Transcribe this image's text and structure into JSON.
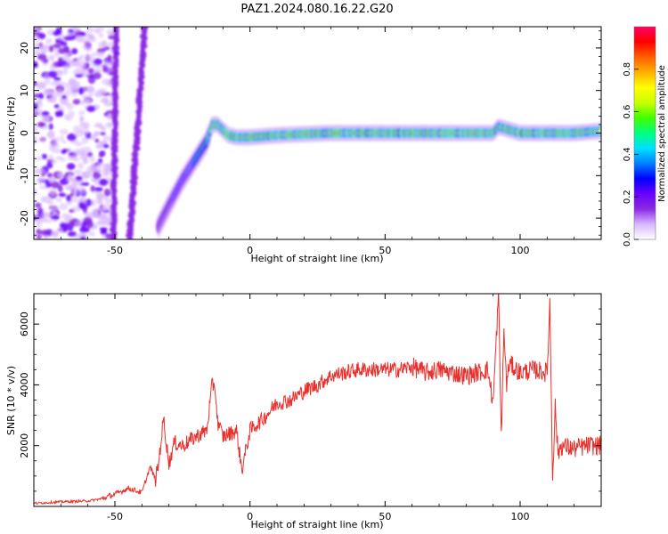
{
  "figure_title": "PAZ1.2024.080.16.22.G20",
  "chart_data": [
    {
      "type": "heatmap",
      "panel": "top",
      "xlabel": "Height of straight line (km)",
      "ylabel": "Frequency (Hz)",
      "xlim": [
        -80,
        130
      ],
      "ylim": [
        -25,
        25
      ],
      "xticks": [
        -50,
        0,
        50,
        100
      ],
      "yticks": [
        -20,
        -10,
        0,
        10,
        20
      ],
      "colorbar": {
        "label": "Normalized spectral amplitude",
        "range": [
          0,
          1
        ],
        "ticks": [
          "0.0",
          "0.2",
          "0.4",
          "0.6",
          "0.8"
        ],
        "colormap": [
          "#ffffff",
          "#d9b8ff",
          "#8a2be2",
          "#6a00ff",
          "#0000ff",
          "#0080ff",
          "#00e0ff",
          "#00ff80",
          "#40ff00",
          "#c8ff00",
          "#ffff00",
          "#ffb000",
          "#ff6000",
          "#ff0000",
          "#ff0066"
        ]
      },
      "features": {
        "noise_region_x": [
          -80,
          -50
        ],
        "steep_line_x": [
          [
            -45,
            -25
          ],
          [
            -39,
            25
          ]
        ],
        "main_curve_x": [
          -34,
          -30,
          -25,
          -20,
          -16,
          -14,
          -12,
          -8,
          -5,
          0,
          10,
          30,
          60,
          90,
          92,
          100,
          110,
          120,
          130
        ],
        "main_curve_y": [
          -22,
          -17,
          -11,
          -6,
          -2,
          2,
          2,
          -0.5,
          -1,
          -1,
          -0.5,
          0,
          0,
          0,
          1.5,
          0,
          0,
          0,
          0.5
        ]
      }
    },
    {
      "type": "line",
      "panel": "bottom",
      "xlabel": "Height of straight line (km)",
      "ylabel": "SNR (10 * v/v)",
      "xlim": [
        -80,
        130
      ],
      "ylim": [
        0,
        7000
      ],
      "xticks": [
        -50,
        0,
        50,
        100
      ],
      "yticks": [
        2000,
        4000,
        6000
      ],
      "series": [
        {
          "color": "#e8302c",
          "x": [
            -80,
            -70,
            -60,
            -55,
            -50,
            -45,
            -40,
            -37,
            -35,
            -34,
            -32,
            -30,
            -28,
            -25,
            -20,
            -16,
            -14,
            -13,
            -12,
            -10,
            -5,
            -3,
            0,
            5,
            10,
            15,
            20,
            25,
            30,
            40,
            50,
            55,
            60,
            65,
            70,
            80,
            88,
            90,
            92,
            93,
            94,
            95,
            96,
            100,
            105,
            110,
            111,
            112,
            113,
            114,
            115,
            120,
            125,
            130
          ],
          "y": [
            100,
            150,
            180,
            250,
            400,
            600,
            450,
            1300,
            900,
            1300,
            2900,
            1400,
            2100,
            2000,
            2300,
            2500,
            4000,
            4000,
            2800,
            2300,
            2500,
            1200,
            2500,
            2900,
            3400,
            3500,
            3800,
            4000,
            4300,
            4500,
            4500,
            4500,
            4600,
            4400,
            4500,
            4300,
            4500,
            3400,
            7000,
            2300,
            5800,
            4000,
            4700,
            4400,
            4500,
            4400,
            6700,
            1000,
            3300,
            1700,
            2000,
            1900,
            2000,
            2000
          ]
        }
      ]
    }
  ]
}
